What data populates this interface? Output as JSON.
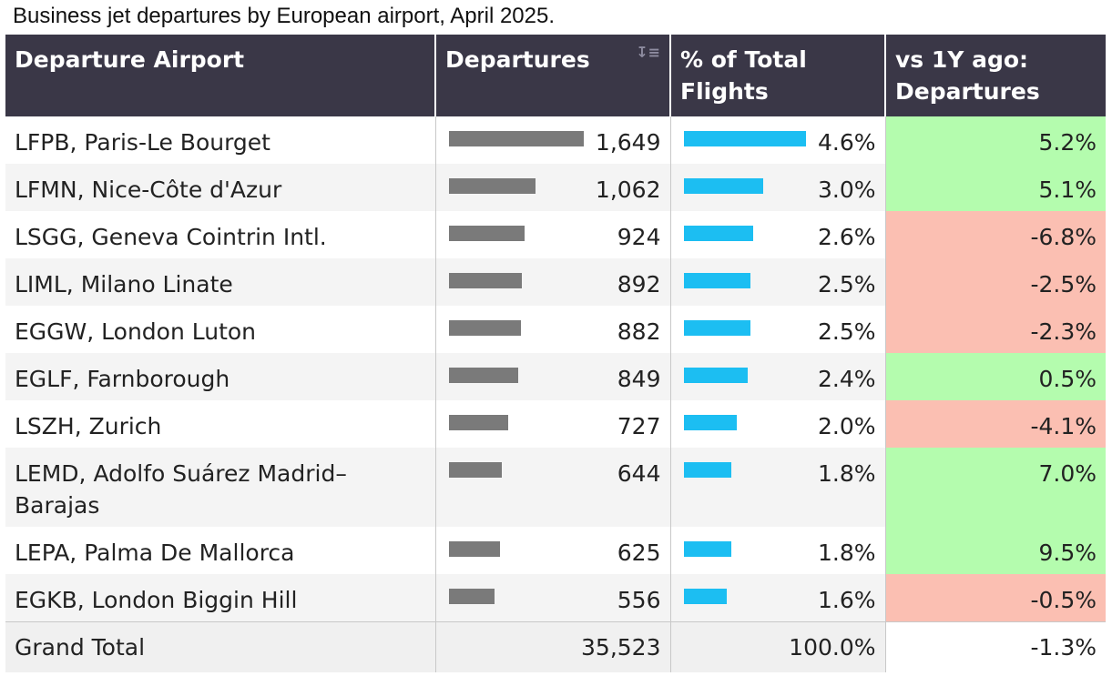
{
  "title": "Business jet departures by European airport, April 2025.",
  "headers": {
    "airport": "Departure Airport",
    "departures": "Departures",
    "pct": "% of Total Flights",
    "vs": "vs 1Y ago: Departures"
  },
  "sort_icon": "sort-descending-icon",
  "colors": {
    "header_bg": "#3a3747",
    "departures_bar": "#7a7a7a",
    "pct_bar": "#1cbef2",
    "positive": "#b4fcae",
    "negative": "#fbbfb2"
  },
  "rows": [
    {
      "airport": "LFPB, Paris-Le Bourget",
      "departures": "1,649",
      "pct": "4.6%",
      "vs": "5.2%"
    },
    {
      "airport": "LFMN, Nice-Côte d'Azur",
      "departures": "1,062",
      "pct": "3.0%",
      "vs": "5.1%"
    },
    {
      "airport": "LSGG, Geneva Cointrin Intl.",
      "departures": "924",
      "pct": "2.6%",
      "vs": "-6.8%"
    },
    {
      "airport": "LIML, Milano Linate",
      "departures": "892",
      "pct": "2.5%",
      "vs": "-2.5%"
    },
    {
      "airport": "EGGW, London Luton",
      "departures": "882",
      "pct": "2.5%",
      "vs": "-2.3%"
    },
    {
      "airport": "EGLF, Farnborough",
      "departures": "849",
      "pct": "2.4%",
      "vs": "0.5%"
    },
    {
      "airport": "LSZH, Zurich",
      "departures": "727",
      "pct": "2.0%",
      "vs": "-4.1%"
    },
    {
      "airport": "LEMD, Adolfo Suárez Madrid–Barajas",
      "departures": "644",
      "pct": "1.8%",
      "vs": "7.0%"
    },
    {
      "airport": "LEPA, Palma De Mallorca",
      "departures": "625",
      "pct": "1.8%",
      "vs": "9.5%"
    },
    {
      "airport": "EGKB, London Biggin Hill",
      "departures": "556",
      "pct": "1.6%",
      "vs": "-0.5%"
    }
  ],
  "total": {
    "label": "Grand Total",
    "departures": "35,523",
    "pct": "100.0%",
    "vs": "-1.3%"
  },
  "chart_data": {
    "type": "table",
    "title": "Business jet departures by European airport, April 2025.",
    "columns": [
      "Departure Airport",
      "Departures",
      "% of Total Flights",
      "vs 1Y ago: Departures"
    ],
    "categories": [
      "LFPB, Paris-Le Bourget",
      "LFMN, Nice-Côte d'Azur",
      "LSGG, Geneva Cointrin Intl.",
      "LIML, Milano Linate",
      "EGGW, London Luton",
      "EGLF, Farnborough",
      "LSZH, Zurich",
      "LEMD, Adolfo Suárez Madrid–Barajas",
      "LEPA, Palma De Mallorca",
      "EGKB, London Biggin Hill"
    ],
    "series": [
      {
        "name": "Departures",
        "values": [
          1649,
          1062,
          924,
          892,
          882,
          849,
          727,
          644,
          625,
          556
        ]
      },
      {
        "name": "% of Total Flights",
        "values": [
          4.6,
          3.0,
          2.6,
          2.5,
          2.5,
          2.4,
          2.0,
          1.8,
          1.8,
          1.6
        ]
      },
      {
        "name": "vs 1Y ago: Departures",
        "values": [
          5.2,
          5.1,
          -6.8,
          -2.5,
          -2.3,
          0.5,
          -4.1,
          7.0,
          9.5,
          -0.5
        ]
      }
    ],
    "total": {
      "departures": 35523,
      "pct": 100.0,
      "vs": -1.3
    }
  }
}
